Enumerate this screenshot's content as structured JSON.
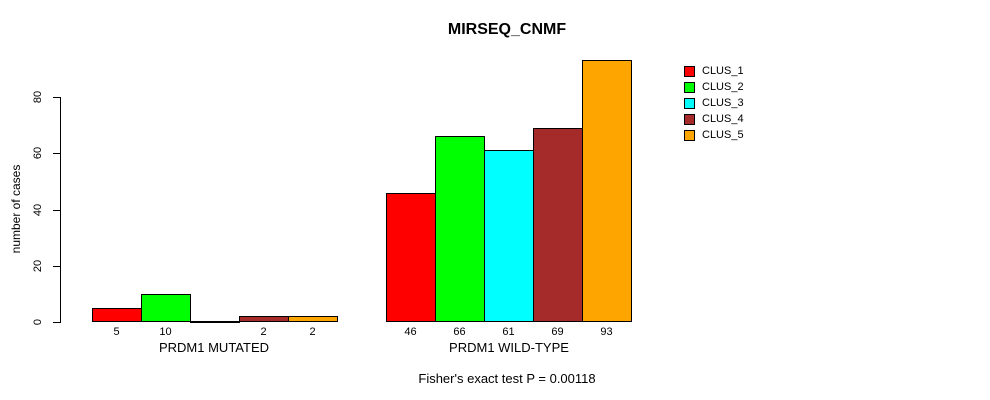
{
  "chart_data": {
    "type": "bar",
    "title": "MIRSEQ_CNMF",
    "xlabel": "",
    "ylabel": "number of cases",
    "ylim": [
      0,
      93
    ],
    "yticks": [
      0,
      20,
      40,
      60,
      80
    ],
    "grid": false,
    "legend_position": "right",
    "categories": [
      "PRDM1 MUTATED",
      "PRDM1 WILD-TYPE"
    ],
    "series": [
      {
        "name": "CLUS_1",
        "color": "#ff0000",
        "values": [
          5,
          46
        ]
      },
      {
        "name": "CLUS_2",
        "color": "#00ff00",
        "values": [
          10,
          66
        ]
      },
      {
        "name": "CLUS_3",
        "color": "#00ffff",
        "values": [
          0,
          61
        ]
      },
      {
        "name": "CLUS_4",
        "color": "#a52a2a",
        "values": [
          2,
          69
        ]
      },
      {
        "name": "CLUS_5",
        "color": "#ffa500",
        "values": [
          2,
          93
        ]
      }
    ],
    "bar_value_labels": [
      [
        "5",
        "10",
        "",
        "2",
        "2"
      ],
      [
        "46",
        "66",
        "61",
        "69",
        "93"
      ]
    ],
    "annotation": "Fisher's exact test P = 0.00118"
  }
}
